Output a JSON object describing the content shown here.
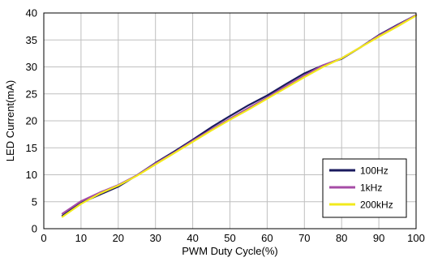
{
  "chart_data": {
    "type": "line",
    "xlabel": "PWM Duty Cycle(%)",
    "ylabel": "LED Current(mA)",
    "xlim": [
      0,
      100
    ],
    "ylim": [
      0,
      40
    ],
    "xticks": [
      0,
      10,
      20,
      30,
      40,
      50,
      60,
      70,
      80,
      90,
      100
    ],
    "yticks": [
      0,
      5,
      10,
      15,
      20,
      25,
      30,
      35,
      40
    ],
    "grid": true,
    "legend_position": "bottom-right",
    "series": [
      {
        "name": "100Hz",
        "color": "#1a1a5e",
        "x": [
          5,
          10,
          15,
          20,
          25,
          30,
          35,
          40,
          45,
          50,
          55,
          60,
          65,
          70,
          75,
          80,
          85,
          90,
          95,
          100
        ],
        "y": [
          2.4,
          4.8,
          6.3,
          7.8,
          9.9,
          12.2,
          14.3,
          16.5,
          18.8,
          20.9,
          22.9,
          24.7,
          26.8,
          28.8,
          30.3,
          31.5,
          33.6,
          35.9,
          37.8,
          39.6
        ]
      },
      {
        "name": "1kHz",
        "color": "#a64ca6",
        "x": [
          5,
          10,
          15,
          20,
          25,
          30,
          35,
          40,
          45,
          50,
          55,
          60,
          65,
          70,
          75,
          80,
          85,
          90,
          95,
          100
        ],
        "y": [
          2.8,
          5.1,
          6.7,
          8.1,
          9.9,
          12.1,
          14.1,
          16.3,
          18.4,
          20.4,
          22.4,
          24.3,
          26.4,
          28.4,
          30.3,
          31.6,
          33.6,
          35.8,
          37.7,
          39.6
        ]
      },
      {
        "name": "200kHz",
        "color": "#f2ea1c",
        "x": [
          5,
          10,
          15,
          20,
          25,
          30,
          35,
          40,
          45,
          50,
          55,
          60,
          65,
          70,
          75,
          80,
          85,
          90,
          95,
          100
        ],
        "y": [
          2.2,
          4.6,
          6.5,
          8.0,
          9.8,
          11.9,
          14.0,
          16.1,
          18.2,
          20.2,
          22.1,
          24.1,
          26.1,
          28.1,
          30.0,
          31.6,
          33.6,
          35.6,
          37.5,
          39.5
        ]
      }
    ]
  }
}
